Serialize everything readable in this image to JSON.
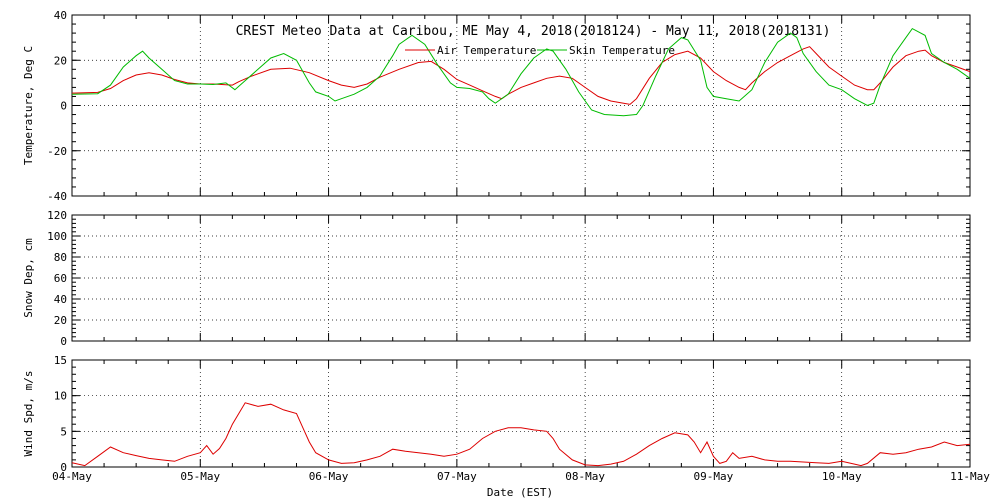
{
  "chart_data": [
    {
      "type": "line",
      "title": "CREST Meteo Data at Caribou, ME   May  4, 2018(2018124) - May 11, 2018(2018131)",
      "ylabel": "Temperature, Deg C",
      "ylim": [
        -40,
        40
      ],
      "yticks": [
        -40,
        -20,
        0,
        20,
        40
      ],
      "grid": true,
      "legend_position": "top-center",
      "x_domain_days": [
        0,
        7
      ],
      "series": [
        {
          "name": "Air Temperature",
          "color": "#dd0000",
          "points": [
            [
              0.0,
              5.5
            ],
            [
              0.2,
              5.8
            ],
            [
              0.3,
              7.5
            ],
            [
              0.4,
              11
            ],
            [
              0.5,
              13.5
            ],
            [
              0.6,
              14.5
            ],
            [
              0.7,
              13.5
            ],
            [
              0.8,
              11.5
            ],
            [
              0.9,
              10
            ],
            [
              1.0,
              9.5
            ],
            [
              1.1,
              9.5
            ],
            [
              1.2,
              9.2
            ],
            [
              1.25,
              9.0
            ],
            [
              1.3,
              10.5
            ],
            [
              1.4,
              13
            ],
            [
              1.55,
              16
            ],
            [
              1.7,
              16.5
            ],
            [
              1.85,
              14.5
            ],
            [
              2.0,
              11
            ],
            [
              2.1,
              9
            ],
            [
              2.2,
              8
            ],
            [
              2.3,
              9.5
            ],
            [
              2.4,
              12.5
            ],
            [
              2.55,
              16
            ],
            [
              2.7,
              19
            ],
            [
              2.8,
              19.5
            ],
            [
              2.9,
              16
            ],
            [
              3.0,
              11.5
            ],
            [
              3.1,
              9
            ],
            [
              3.2,
              6.5
            ],
            [
              3.3,
              4
            ],
            [
              3.35,
              3
            ],
            [
              3.4,
              5
            ],
            [
              3.5,
              8
            ],
            [
              3.6,
              10
            ],
            [
              3.7,
              12
            ],
            [
              3.8,
              13
            ],
            [
              3.9,
              12
            ],
            [
              4.0,
              8
            ],
            [
              4.1,
              4
            ],
            [
              4.2,
              2
            ],
            [
              4.3,
              1
            ],
            [
              4.35,
              0.5
            ],
            [
              4.4,
              3
            ],
            [
              4.5,
              12
            ],
            [
              4.6,
              19
            ],
            [
              4.7,
              22.5
            ],
            [
              4.8,
              24
            ],
            [
              4.9,
              21
            ],
            [
              5.0,
              15
            ],
            [
              5.1,
              11
            ],
            [
              5.2,
              8
            ],
            [
              5.25,
              7
            ],
            [
              5.3,
              10
            ],
            [
              5.4,
              15
            ],
            [
              5.5,
              19
            ],
            [
              5.6,
              22
            ],
            [
              5.7,
              25
            ],
            [
              5.75,
              26
            ],
            [
              5.8,
              23
            ],
            [
              5.9,
              17
            ],
            [
              6.0,
              13
            ],
            [
              6.1,
              9
            ],
            [
              6.2,
              7
            ],
            [
              6.25,
              7
            ],
            [
              6.3,
              10
            ],
            [
              6.4,
              17
            ],
            [
              6.5,
              22
            ],
            [
              6.6,
              24
            ],
            [
              6.65,
              24.5
            ],
            [
              6.7,
              22
            ],
            [
              6.8,
              19
            ],
            [
              6.9,
              17
            ],
            [
              7.0,
              15
            ]
          ]
        },
        {
          "name": "Skin Temperature",
          "color": "#00bb00",
          "points": [
            [
              0.0,
              5
            ],
            [
              0.2,
              5.2
            ],
            [
              0.3,
              9
            ],
            [
              0.4,
              17
            ],
            [
              0.5,
              22
            ],
            [
              0.55,
              24
            ],
            [
              0.6,
              21
            ],
            [
              0.7,
              16
            ],
            [
              0.8,
              11
            ],
            [
              0.9,
              9.5
            ],
            [
              1.0,
              9.5
            ],
            [
              1.1,
              9.3
            ],
            [
              1.2,
              10
            ],
            [
              1.27,
              7
            ],
            [
              1.35,
              11
            ],
            [
              1.45,
              16
            ],
            [
              1.55,
              21
            ],
            [
              1.65,
              23
            ],
            [
              1.75,
              20
            ],
            [
              1.85,
              10
            ],
            [
              1.9,
              6
            ],
            [
              2.0,
              4
            ],
            [
              2.05,
              2
            ],
            [
              2.1,
              3
            ],
            [
              2.2,
              5
            ],
            [
              2.3,
              8
            ],
            [
              2.4,
              13
            ],
            [
              2.5,
              22
            ],
            [
              2.55,
              27
            ],
            [
              2.65,
              31
            ],
            [
              2.75,
              27
            ],
            [
              2.85,
              18
            ],
            [
              2.95,
              10
            ],
            [
              3.0,
              8
            ],
            [
              3.1,
              7.5
            ],
            [
              3.2,
              6
            ],
            [
              3.25,
              3
            ],
            [
              3.3,
              1
            ],
            [
              3.4,
              5
            ],
            [
              3.5,
              14
            ],
            [
              3.6,
              21
            ],
            [
              3.7,
              25
            ],
            [
              3.75,
              24
            ],
            [
              3.85,
              16
            ],
            [
              3.95,
              6
            ],
            [
              4.05,
              -2
            ],
            [
              4.15,
              -4
            ],
            [
              4.3,
              -4.5
            ],
            [
              4.4,
              -4
            ],
            [
              4.45,
              0
            ],
            [
              4.55,
              13
            ],
            [
              4.65,
              25
            ],
            [
              4.75,
              30
            ],
            [
              4.8,
              29
            ],
            [
              4.9,
              20
            ],
            [
              4.95,
              8
            ],
            [
              5.0,
              4
            ],
            [
              5.1,
              3
            ],
            [
              5.2,
              2
            ],
            [
              5.3,
              7
            ],
            [
              5.4,
              19
            ],
            [
              5.5,
              28
            ],
            [
              5.6,
              32
            ],
            [
              5.65,
              30
            ],
            [
              5.7,
              23
            ],
            [
              5.8,
              15
            ],
            [
              5.9,
              9
            ],
            [
              6.0,
              7
            ],
            [
              6.1,
              3
            ],
            [
              6.2,
              0
            ],
            [
              6.25,
              1
            ],
            [
              6.3,
              9
            ],
            [
              6.4,
              22
            ],
            [
              6.5,
              30
            ],
            [
              6.55,
              34
            ],
            [
              6.65,
              31
            ],
            [
              6.7,
              23
            ],
            [
              6.8,
              19
            ],
            [
              6.9,
              16
            ],
            [
              7.0,
              12
            ]
          ]
        }
      ]
    },
    {
      "type": "line",
      "ylabel": "Snow Dep, cm",
      "ylim": [
        0,
        120
      ],
      "yticks": [
        0,
        20,
        40,
        60,
        80,
        100,
        120
      ],
      "grid": true,
      "series": []
    },
    {
      "type": "line",
      "ylabel": "Wind Spd, m/s",
      "xlabel": "Date (EST)",
      "ylim": [
        0,
        15
      ],
      "yticks": [
        0,
        5,
        10,
        15
      ],
      "grid": true,
      "categories": [
        "04-May",
        "05-May",
        "06-May",
        "07-May",
        "08-May",
        "09-May",
        "10-May",
        "11-May"
      ],
      "series": [
        {
          "color": "#dd0000",
          "points": [
            [
              0.0,
              0.6
            ],
            [
              0.1,
              0.2
            ],
            [
              0.2,
              1.5
            ],
            [
              0.3,
              2.8
            ],
            [
              0.4,
              2.0
            ],
            [
              0.5,
              1.6
            ],
            [
              0.6,
              1.2
            ],
            [
              0.7,
              1.0
            ],
            [
              0.8,
              0.8
            ],
            [
              0.9,
              1.5
            ],
            [
              1.0,
              2.0
            ],
            [
              1.05,
              3.0
            ],
            [
              1.1,
              1.8
            ],
            [
              1.15,
              2.6
            ],
            [
              1.2,
              4.0
            ],
            [
              1.25,
              6.0
            ],
            [
              1.3,
              7.5
            ],
            [
              1.35,
              9.0
            ],
            [
              1.45,
              8.5
            ],
            [
              1.55,
              8.8
            ],
            [
              1.65,
              8.0
            ],
            [
              1.75,
              7.5
            ],
            [
              1.8,
              5.5
            ],
            [
              1.85,
              3.5
            ],
            [
              1.9,
              2.0
            ],
            [
              2.0,
              1.0
            ],
            [
              2.1,
              0.5
            ],
            [
              2.2,
              0.6
            ],
            [
              2.3,
              1.0
            ],
            [
              2.4,
              1.5
            ],
            [
              2.5,
              2.5
            ],
            [
              2.6,
              2.2
            ],
            [
              2.7,
              2.0
            ],
            [
              2.8,
              1.8
            ],
            [
              2.9,
              1.5
            ],
            [
              3.0,
              1.8
            ],
            [
              3.1,
              2.5
            ],
            [
              3.2,
              4.0
            ],
            [
              3.3,
              5.0
            ],
            [
              3.4,
              5.5
            ],
            [
              3.5,
              5.5
            ],
            [
              3.6,
              5.2
            ],
            [
              3.7,
              5.0
            ],
            [
              3.75,
              4.0
            ],
            [
              3.8,
              2.5
            ],
            [
              3.9,
              1.0
            ],
            [
              4.0,
              0.3
            ],
            [
              4.1,
              0.2
            ],
            [
              4.2,
              0.4
            ],
            [
              4.3,
              0.8
            ],
            [
              4.4,
              1.8
            ],
            [
              4.5,
              3.0
            ],
            [
              4.6,
              4.0
            ],
            [
              4.7,
              4.8
            ],
            [
              4.8,
              4.5
            ],
            [
              4.85,
              3.5
            ],
            [
              4.9,
              2.0
            ],
            [
              4.95,
              3.5
            ],
            [
              5.0,
              1.5
            ],
            [
              5.05,
              0.5
            ],
            [
              5.1,
              0.8
            ],
            [
              5.15,
              2.0
            ],
            [
              5.2,
              1.2
            ],
            [
              5.3,
              1.5
            ],
            [
              5.4,
              1.0
            ],
            [
              5.5,
              0.8
            ],
            [
              5.6,
              0.8
            ],
            [
              5.7,
              0.7
            ],
            [
              5.8,
              0.6
            ],
            [
              5.9,
              0.5
            ],
            [
              6.0,
              0.8
            ],
            [
              6.1,
              0.4
            ],
            [
              6.15,
              0.2
            ],
            [
              6.2,
              0.5
            ],
            [
              6.3,
              2.0
            ],
            [
              6.4,
              1.8
            ],
            [
              6.5,
              2.0
            ],
            [
              6.6,
              2.5
            ],
            [
              6.7,
              2.8
            ],
            [
              6.8,
              3.5
            ],
            [
              6.9,
              3.0
            ],
            [
              7.0,
              3.2
            ]
          ]
        }
      ]
    }
  ]
}
